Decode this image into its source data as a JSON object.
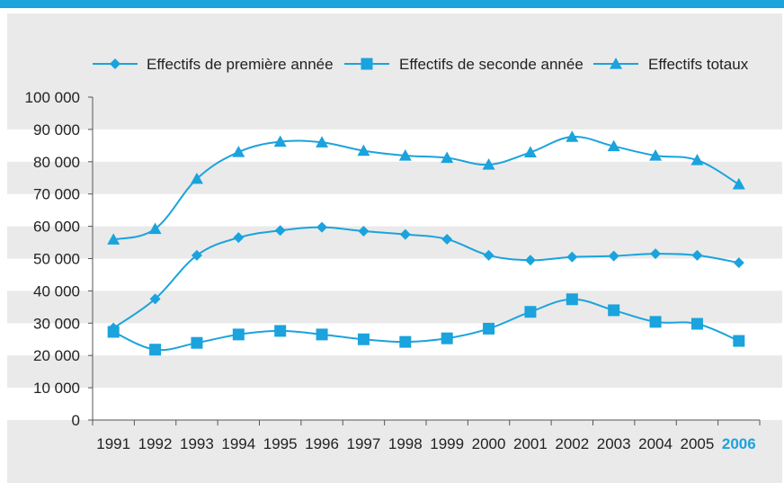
{
  "colors": {
    "accent": "#1aa3dd",
    "series": "#1aa3dd",
    "band": "#e6e6e6",
    "axis": "#555555",
    "text": "#222222",
    "highlight_year": "#1aa3dd"
  },
  "chart_data": {
    "type": "line",
    "title": "",
    "xlabel": "",
    "ylabel": "",
    "x": [
      "1991",
      "1992",
      "1993",
      "1994",
      "1995",
      "1996",
      "1997",
      "1998",
      "1999",
      "2000",
      "2001",
      "2002",
      "2003",
      "2004",
      "2005",
      "2006"
    ],
    "highlighted_category": "2006",
    "ylim": [
      0,
      100000
    ],
    "y_ticks": [
      0,
      10000,
      20000,
      30000,
      40000,
      50000,
      60000,
      70000,
      80000,
      90000,
      100000
    ],
    "y_tick_labels": [
      "0",
      "10 000",
      "20 000",
      "30 000",
      "40 000",
      "50 000",
      "60 000",
      "70 000",
      "80 000",
      "90 000",
      "100 000"
    ],
    "grid": "alternating horizontal bands",
    "legend_position": "top",
    "series": [
      {
        "name": "Effectifs de première année",
        "marker": "diamond",
        "values": [
          28500,
          37500,
          51000,
          56500,
          58700,
          59700,
          58500,
          57500,
          56000,
          51000,
          49500,
          50500,
          50800,
          51500,
          51000,
          48700
        ]
      },
      {
        "name": "Effectifs de seconde année",
        "marker": "square",
        "values": [
          27300,
          21800,
          23900,
          26500,
          27600,
          26500,
          25000,
          24200,
          25300,
          28300,
          33500,
          37400,
          34000,
          30400,
          29800,
          24500
        ]
      },
      {
        "name": "Effectifs totaux",
        "marker": "triangle",
        "values": [
          55900,
          59200,
          74700,
          83000,
          86200,
          86000,
          83400,
          81900,
          81200,
          79100,
          82900,
          87700,
          84800,
          81900,
          80500,
          73000
        ]
      }
    ]
  }
}
